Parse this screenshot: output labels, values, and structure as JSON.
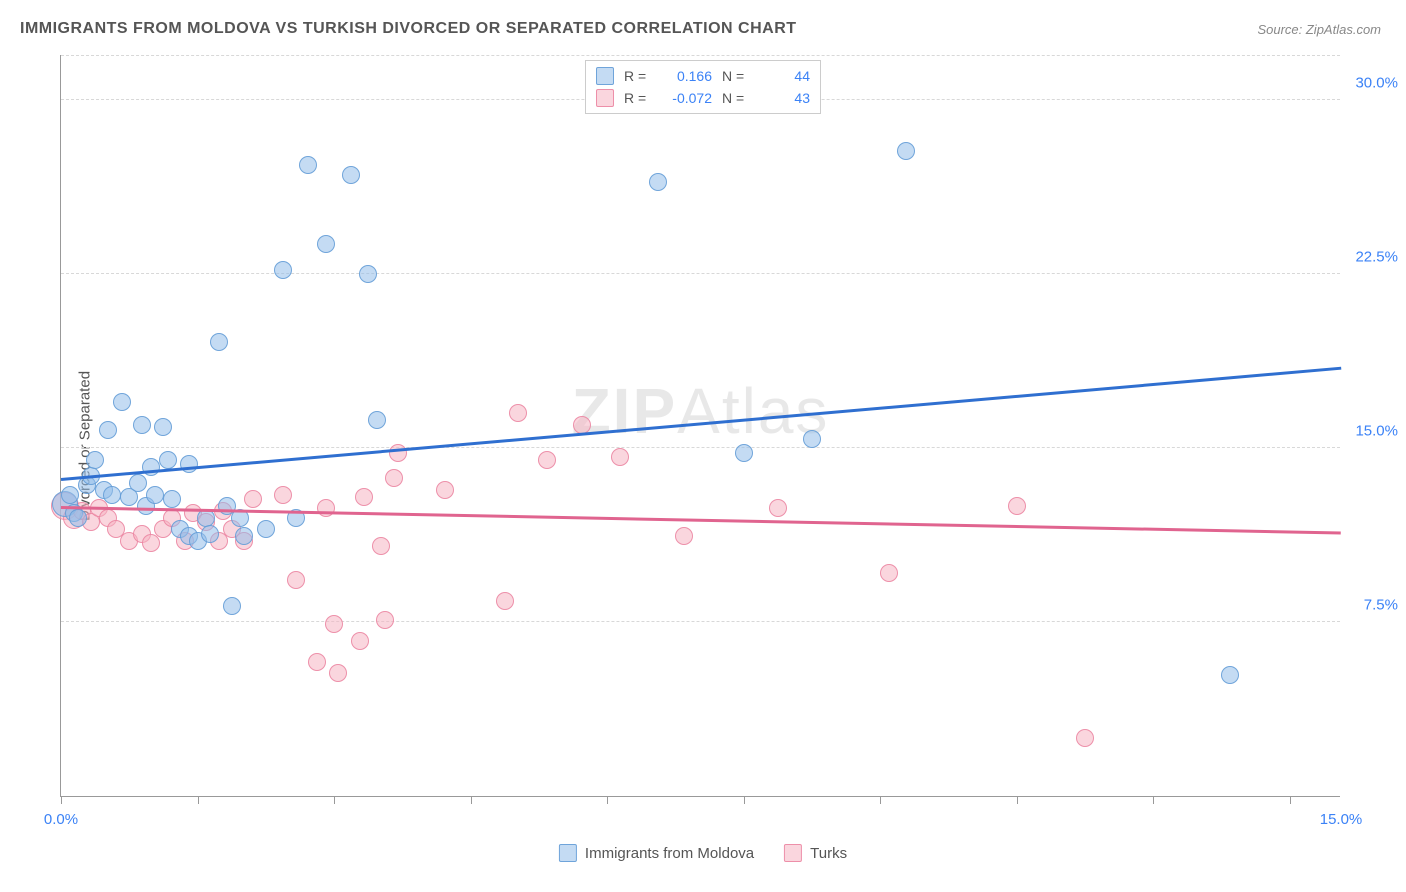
{
  "title": "IMMIGRANTS FROM MOLDOVA VS TURKISH DIVORCED OR SEPARATED CORRELATION CHART",
  "source": "Source: ZipAtlas.com",
  "watermark": "ZIPAtlas",
  "ylabel": "Divorced or Separated",
  "chart": {
    "type": "scatter",
    "xlim": [
      0,
      15
    ],
    "ylim": [
      0,
      32
    ],
    "xtick_positions": [
      0,
      1.6,
      3.2,
      4.8,
      6.4,
      8.0,
      9.6,
      11.2,
      12.8,
      14.4
    ],
    "xtick_labels": {
      "0": "0.0%",
      "15": "15.0%"
    },
    "ytick_positions": [
      7.5,
      15.0,
      22.5,
      30.0
    ],
    "ytick_labels": [
      "7.5%",
      "15.0%",
      "22.5%",
      "30.0%"
    ],
    "grid_color": "#d8d8d8",
    "background_color": "#ffffff",
    "marker_radius_default": 9,
    "series_a": {
      "name": "Immigrants from Moldova",
      "fill": "rgba(147,190,234,0.55)",
      "stroke": "rgba(96,155,214,0.85)",
      "trend_color": "#2f6fd0",
      "r": "0.166",
      "n": "44",
      "trend": {
        "y_at_x0": 13.6,
        "y_at_xmax": 18.4
      },
      "points": [
        {
          "x": 0.05,
          "y": 12.6,
          "r": 13
        },
        {
          "x": 0.1,
          "y": 13.0,
          "r": 9
        },
        {
          "x": 0.15,
          "y": 12.2,
          "r": 9
        },
        {
          "x": 0.2,
          "y": 12.0,
          "r": 9
        },
        {
          "x": 0.3,
          "y": 13.4,
          "r": 9
        },
        {
          "x": 0.35,
          "y": 13.8,
          "r": 9
        },
        {
          "x": 0.4,
          "y": 14.5,
          "r": 9
        },
        {
          "x": 0.5,
          "y": 13.2,
          "r": 9
        },
        {
          "x": 0.55,
          "y": 15.8,
          "r": 9
        },
        {
          "x": 0.6,
          "y": 13.0,
          "r": 9
        },
        {
          "x": 0.72,
          "y": 17.0,
          "r": 9
        },
        {
          "x": 0.8,
          "y": 12.9,
          "r": 9
        },
        {
          "x": 0.9,
          "y": 13.5,
          "r": 9
        },
        {
          "x": 0.95,
          "y": 16.0,
          "r": 9
        },
        {
          "x": 1.0,
          "y": 12.5,
          "r": 9
        },
        {
          "x": 1.05,
          "y": 14.2,
          "r": 9
        },
        {
          "x": 1.1,
          "y": 13.0,
          "r": 9
        },
        {
          "x": 1.2,
          "y": 15.9,
          "r": 9
        },
        {
          "x": 1.25,
          "y": 14.5,
          "r": 9
        },
        {
          "x": 1.3,
          "y": 12.8,
          "r": 9
        },
        {
          "x": 1.4,
          "y": 11.5,
          "r": 9
        },
        {
          "x": 1.5,
          "y": 11.2,
          "r": 9
        },
        {
          "x": 1.5,
          "y": 14.3,
          "r": 9
        },
        {
          "x": 1.6,
          "y": 11.0,
          "r": 9
        },
        {
          "x": 1.7,
          "y": 12.0,
          "r": 9
        },
        {
          "x": 1.75,
          "y": 11.3,
          "r": 9
        },
        {
          "x": 1.85,
          "y": 19.6,
          "r": 9
        },
        {
          "x": 1.95,
          "y": 12.5,
          "r": 9
        },
        {
          "x": 2.0,
          "y": 8.2,
          "r": 9
        },
        {
          "x": 2.1,
          "y": 12.0,
          "r": 9
        },
        {
          "x": 2.15,
          "y": 11.2,
          "r": 9
        },
        {
          "x": 2.4,
          "y": 11.5,
          "r": 9
        },
        {
          "x": 2.6,
          "y": 22.7,
          "r": 9
        },
        {
          "x": 2.75,
          "y": 12.0,
          "r": 9
        },
        {
          "x": 2.9,
          "y": 27.2,
          "r": 9
        },
        {
          "x": 3.1,
          "y": 23.8,
          "r": 9
        },
        {
          "x": 3.4,
          "y": 26.8,
          "r": 9
        },
        {
          "x": 3.6,
          "y": 22.5,
          "r": 9
        },
        {
          "x": 3.7,
          "y": 16.2,
          "r": 9
        },
        {
          "x": 7.0,
          "y": 26.5,
          "r": 9
        },
        {
          "x": 8.0,
          "y": 14.8,
          "r": 9
        },
        {
          "x": 8.8,
          "y": 15.4,
          "r": 9
        },
        {
          "x": 9.9,
          "y": 27.8,
          "r": 9
        },
        {
          "x": 13.7,
          "y": 5.2,
          "r": 9
        }
      ]
    },
    "series_b": {
      "name": "Turks",
      "fill": "rgba(245,180,195,0.55)",
      "stroke": "rgba(235,130,160,0.85)",
      "trend_color": "#e0648f",
      "r": "-0.072",
      "n": "43",
      "trend": {
        "y_at_x0": 12.4,
        "y_at_xmax": 11.3
      },
      "points": [
        {
          "x": 0.05,
          "y": 12.5,
          "r": 14
        },
        {
          "x": 0.15,
          "y": 12.0,
          "r": 11
        },
        {
          "x": 0.25,
          "y": 12.3,
          "r": 9
        },
        {
          "x": 0.35,
          "y": 11.8,
          "r": 9
        },
        {
          "x": 0.45,
          "y": 12.4,
          "r": 9
        },
        {
          "x": 0.55,
          "y": 12.0,
          "r": 9
        },
        {
          "x": 0.65,
          "y": 11.5,
          "r": 9
        },
        {
          "x": 0.8,
          "y": 11.0,
          "r": 9
        },
        {
          "x": 0.95,
          "y": 11.3,
          "r": 9
        },
        {
          "x": 1.05,
          "y": 10.9,
          "r": 9
        },
        {
          "x": 1.2,
          "y": 11.5,
          "r": 9
        },
        {
          "x": 1.3,
          "y": 12.0,
          "r": 9
        },
        {
          "x": 1.45,
          "y": 11.0,
          "r": 9
        },
        {
          "x": 1.55,
          "y": 12.2,
          "r": 9
        },
        {
          "x": 1.7,
          "y": 11.8,
          "r": 9
        },
        {
          "x": 1.85,
          "y": 11.0,
          "r": 9
        },
        {
          "x": 1.9,
          "y": 12.3,
          "r": 9
        },
        {
          "x": 2.0,
          "y": 11.5,
          "r": 9
        },
        {
          "x": 2.15,
          "y": 11.0,
          "r": 9
        },
        {
          "x": 2.25,
          "y": 12.8,
          "r": 9
        },
        {
          "x": 2.6,
          "y": 13.0,
          "r": 9
        },
        {
          "x": 2.75,
          "y": 9.3,
          "r": 9
        },
        {
          "x": 3.0,
          "y": 5.8,
          "r": 9
        },
        {
          "x": 3.1,
          "y": 12.4,
          "r": 9
        },
        {
          "x": 3.2,
          "y": 7.4,
          "r": 9
        },
        {
          "x": 3.25,
          "y": 5.3,
          "r": 9
        },
        {
          "x": 3.5,
          "y": 6.7,
          "r": 9
        },
        {
          "x": 3.55,
          "y": 12.9,
          "r": 9
        },
        {
          "x": 3.75,
          "y": 10.8,
          "r": 9
        },
        {
          "x": 3.8,
          "y": 7.6,
          "r": 9
        },
        {
          "x": 3.9,
          "y": 13.7,
          "r": 9
        },
        {
          "x": 3.95,
          "y": 14.8,
          "r": 9
        },
        {
          "x": 4.5,
          "y": 13.2,
          "r": 9
        },
        {
          "x": 5.2,
          "y": 8.4,
          "r": 9
        },
        {
          "x": 5.35,
          "y": 16.5,
          "r": 9
        },
        {
          "x": 5.7,
          "y": 14.5,
          "r": 9
        },
        {
          "x": 6.1,
          "y": 16.0,
          "r": 9
        },
        {
          "x": 6.55,
          "y": 14.6,
          "r": 9
        },
        {
          "x": 7.3,
          "y": 11.2,
          "r": 9
        },
        {
          "x": 8.4,
          "y": 12.4,
          "r": 9
        },
        {
          "x": 9.7,
          "y": 9.6,
          "r": 9
        },
        {
          "x": 11.2,
          "y": 12.5,
          "r": 9
        },
        {
          "x": 12.0,
          "y": 2.5,
          "r": 9
        }
      ]
    }
  },
  "legend_top": {
    "r_label": "R =",
    "n_label": "N ="
  },
  "legend_bottom": {
    "a": "Immigrants from Moldova",
    "b": "Turks"
  }
}
